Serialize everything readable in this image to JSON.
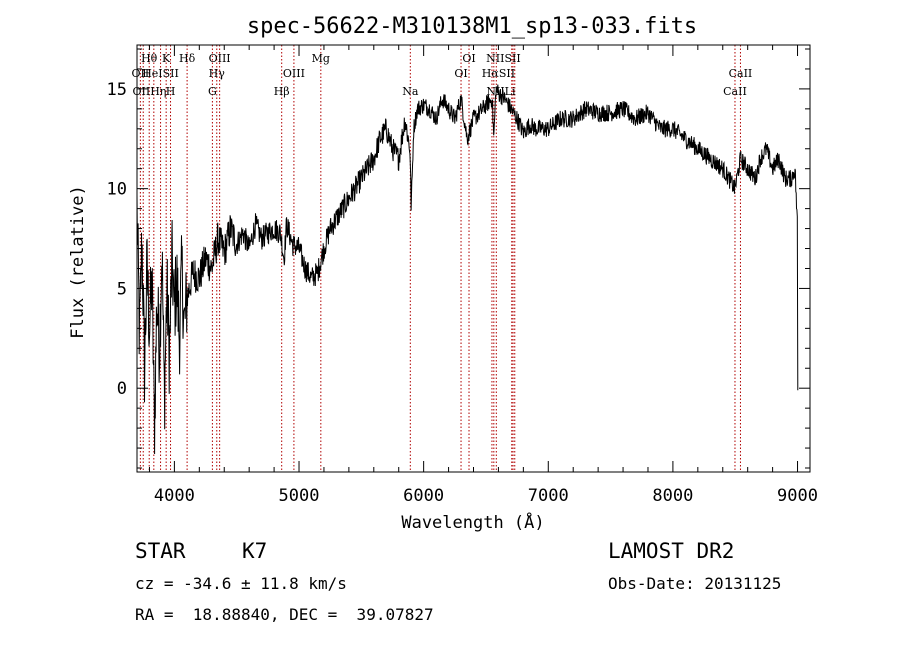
{
  "chart_data": {
    "type": "line",
    "title": "spec-56622-M310138M1_sp13-033.fits",
    "xlabel": "Wavelength (Å)",
    "ylabel": "Flux (relative)",
    "xlim": [
      3700,
      9100
    ],
    "ylim": [
      -4.2,
      17.2
    ],
    "x_ticks": [
      4000,
      5000,
      6000,
      7000,
      8000,
      9000
    ],
    "y_ticks": [
      0,
      5,
      10,
      15
    ],
    "grid": false,
    "legend": "none",
    "series": [
      {
        "color": "#000000",
        "x": [
          3700,
          3720,
          3740,
          3760,
          3780,
          3800,
          3820,
          3840,
          3860,
          3880,
          3900,
          3920,
          3940,
          3960,
          3980,
          4000,
          4020,
          4040,
          4060,
          4080,
          4100,
          4150,
          4200,
          4250,
          4300,
          4350,
          4400,
          4450,
          4500,
          4550,
          4600,
          4650,
          4700,
          4750,
          4800,
          4850,
          4880,
          4900,
          4950,
          5000,
          5050,
          5100,
          5150,
          5200,
          5250,
          5300,
          5350,
          5400,
          5450,
          5500,
          5550,
          5600,
          5650,
          5700,
          5750,
          5800,
          5850,
          5890,
          5900,
          5920,
          5950,
          6000,
          6050,
          6100,
          6150,
          6200,
          6250,
          6300,
          6350,
          6400,
          6450,
          6500,
          6550,
          6563,
          6580,
          6600,
          6650,
          6700,
          6750,
          6800,
          6850,
          6900,
          7000,
          7100,
          7200,
          7300,
          7400,
          7500,
          7600,
          7700,
          7800,
          7900,
          8000,
          8100,
          8200,
          8300,
          8400,
          8498,
          8542,
          8600,
          8662,
          8700,
          8750,
          8800,
          8850,
          8900,
          8950,
          8980,
          9000
        ],
        "y": [
          9.0,
          2.5,
          7.5,
          1.0,
          6.0,
          3.0,
          5.5,
          -2.0,
          4.5,
          2.0,
          7.0,
          -0.5,
          5.0,
          1.5,
          6.5,
          4.0,
          5.5,
          2.5,
          6.0,
          3.0,
          4.5,
          5.8,
          5.5,
          6.5,
          6.0,
          7.5,
          6.8,
          8.0,
          7.2,
          7.8,
          7.0,
          8.2,
          7.5,
          7.8,
          8.0,
          7.8,
          6.5,
          8.2,
          7.2,
          7.0,
          6.0,
          5.5,
          5.8,
          7.0,
          8.0,
          8.5,
          9.0,
          9.5,
          10.0,
          10.5,
          11.0,
          11.5,
          12.5,
          13.0,
          12.0,
          11.5,
          13.5,
          12.0,
          9.0,
          13.0,
          14.0,
          14.2,
          14.0,
          13.5,
          14.5,
          14.0,
          13.5,
          14.5,
          12.5,
          13.5,
          13.8,
          14.2,
          14.5,
          12.5,
          15.0,
          14.8,
          14.5,
          14.0,
          13.5,
          12.8,
          13.2,
          13.0,
          13.0,
          13.5,
          13.5,
          14.0,
          13.8,
          13.8,
          14.0,
          13.5,
          13.8,
          13.0,
          13.0,
          12.5,
          12.0,
          11.5,
          11.0,
          10.0,
          11.5,
          11.0,
          10.5,
          11.5,
          12.0,
          11.0,
          11.5,
          10.5,
          10.5,
          11.0,
          8.0
        ]
      }
    ],
    "line_labels": [
      {
        "text": "Hθ",
        "x": 3798,
        "row": 1
      },
      {
        "text": "K",
        "x": 3934,
        "row": 1
      },
      {
        "text": "Hδ",
        "x": 4102,
        "row": 1
      },
      {
        "text": "OIII",
        "x": 4363,
        "row": 1
      },
      {
        "text": "Mg",
        "x": 5175,
        "row": 1
      },
      {
        "text": "OI",
        "x": 6364,
        "row": 1
      },
      {
        "text": "NIISII",
        "x": 6640,
        "row": 1
      },
      {
        "text": "OII",
        "x": 3727,
        "row": 2
      },
      {
        "text": "HeISII",
        "x": 3889,
        "row": 2
      },
      {
        "text": "Hγ",
        "x": 4340,
        "row": 2
      },
      {
        "text": "OIII",
        "x": 4959,
        "row": 2
      },
      {
        "text": "OI",
        "x": 6300,
        "row": 2
      },
      {
        "text": "HαSII",
        "x": 6600,
        "row": 2
      },
      {
        "text": "CaII",
        "x": 8542,
        "row": 2
      },
      {
        "text": "OIIHη",
        "x": 3800,
        "row": 3
      },
      {
        "text": "H",
        "x": 3969,
        "row": 3
      },
      {
        "text": "G",
        "x": 4305,
        "row": 3
      },
      {
        "text": "Hβ",
        "x": 4861,
        "row": 3
      },
      {
        "text": "Na",
        "x": 5893,
        "row": 3
      },
      {
        "text": "NIILi",
        "x": 6620,
        "row": 3
      },
      {
        "text": "CaII",
        "x": 8498,
        "row": 3
      }
    ],
    "line_marks": [
      3727,
      3750,
      3798,
      3835,
      3889,
      3934,
      3969,
      4102,
      4305,
      4340,
      4363,
      4861,
      4959,
      5175,
      5893,
      6300,
      6364,
      6548,
      6563,
      6583,
      6707,
      6717,
      6731,
      8498,
      8542
    ]
  },
  "info": {
    "object_class": "STAR",
    "subclass": "K7",
    "survey": "LAMOST DR2",
    "redshift": "cz = -34.6 ± 11.8 km/s",
    "obs_date": "Obs-Date: 20131125",
    "coords": "RA =  18.88840, DEC =  39.07827"
  }
}
